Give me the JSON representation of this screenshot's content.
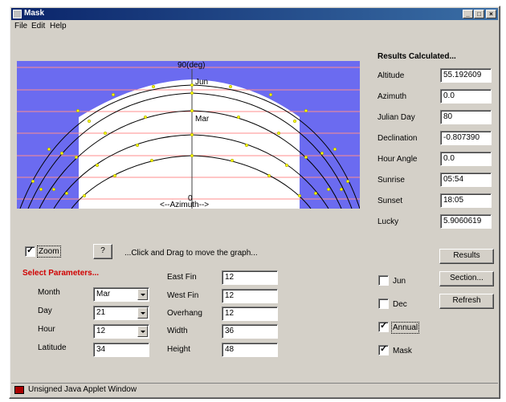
{
  "window": {
    "title": "Mask",
    "controls": {
      "minimize": "_",
      "maximize": "□",
      "close": "×"
    }
  },
  "menu": {
    "file": "File",
    "edit": "Edit",
    "help": "Help"
  },
  "chart_labels": {
    "top": "90(deg)",
    "jun": "Jun",
    "mar": "Mar",
    "zero": "0",
    "azimuth": "<--Azimuth-->"
  },
  "results": {
    "heading": "Results Calculated...",
    "rows": [
      {
        "label": "Altitude",
        "value": "55.192609"
      },
      {
        "label": "Azimuth",
        "value": "0.0"
      },
      {
        "label": "Julian Day",
        "value": "80"
      },
      {
        "label": "Declination",
        "value": "-0.807390"
      },
      {
        "label": "Hour Angle",
        "value": "0.0"
      },
      {
        "label": "Sunrise",
        "value": "05:54"
      },
      {
        "label": "Sunset",
        "value": "18:05"
      },
      {
        "label": "Lucky",
        "value": "5.9060619"
      }
    ]
  },
  "controls": {
    "zoom_label": "Zoom",
    "zoom_checked": true,
    "help_button": "?",
    "hint": "...Click and Drag to move the graph...",
    "select_params": "Select Parameters...",
    "month_label": "Month",
    "month_value": "Mar",
    "day_label": "Day",
    "day_value": "21",
    "hour_label": "Hour",
    "hour_value": "12",
    "latitude_label": "Latitude",
    "latitude_value": "34",
    "east_fin_label": "East Fin",
    "east_fin_value": "12",
    "west_fin_label": "West Fin",
    "west_fin_value": "12",
    "overhang_label": "Overhang",
    "overhang_value": "12",
    "width_label": "Width",
    "width_value": "36",
    "height_label": "Height",
    "height_value": "48"
  },
  "buttons": {
    "results": "Results",
    "section": "Section...",
    "refresh": "Refresh"
  },
  "checkboxes": {
    "jun": {
      "label": "Jun",
      "checked": false
    },
    "dec": {
      "label": "Dec",
      "checked": false
    },
    "annual": {
      "label": "Annual",
      "checked": true
    },
    "mask": {
      "label": "Mask",
      "checked": true
    }
  },
  "status": {
    "text": "Unsigned Java Applet Window"
  },
  "colors": {
    "sky": "#6b6bf0",
    "mask_area": "#ffffff",
    "grid": "#ff8c8c",
    "curve": "#000000",
    "point": "#ffff00",
    "select_params": "#d00000"
  }
}
